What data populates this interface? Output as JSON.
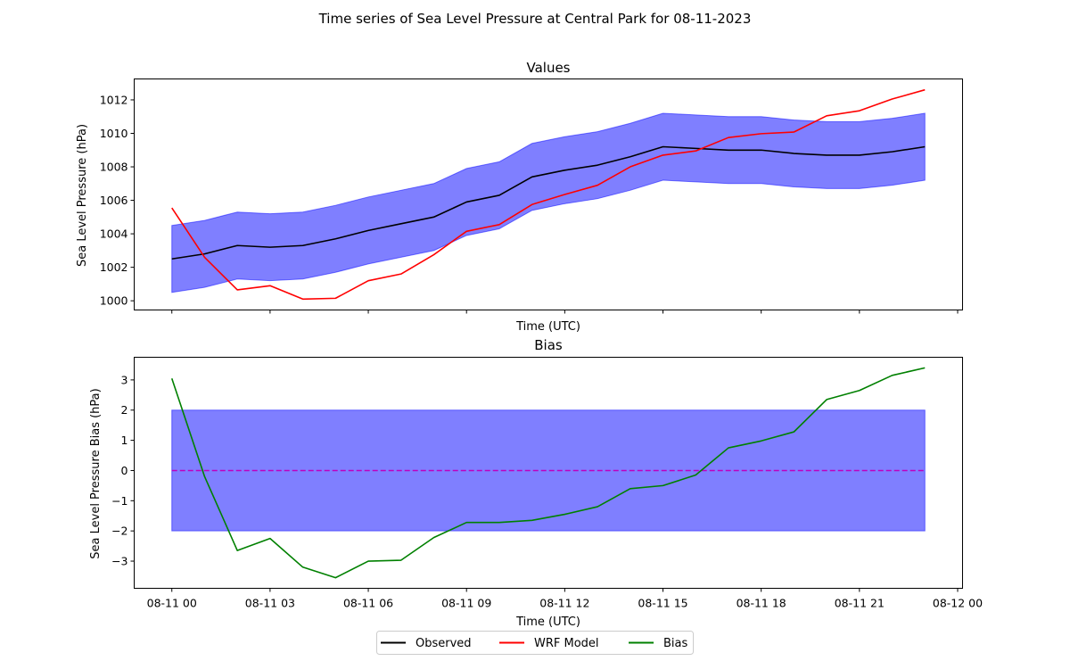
{
  "figure_title": "Time series of Sea Level Pressure at Central Park for 08-11-2023",
  "legend": {
    "entries": [
      {
        "label": "Observed",
        "color": "#000000"
      },
      {
        "label": "WRF Model",
        "color": "#ff0000"
      },
      {
        "label": "Bias",
        "color": "#008000"
      }
    ],
    "placement": "bottom-center"
  },
  "chart_data": [
    {
      "type": "line",
      "title": "Values",
      "xlabel": "Time (UTC)",
      "ylabel": "Sea Level Pressure (hPa)",
      "x_hours": [
        0,
        1,
        2,
        3,
        4,
        5,
        6,
        7,
        8,
        9,
        10,
        11,
        12,
        13,
        14,
        15,
        16,
        17,
        18,
        19,
        20,
        21,
        22,
        23
      ],
      "xlim_hours": [
        -1.15,
        24.15
      ],
      "ylim": [
        999.45,
        1013.25
      ],
      "yticks": [
        1000,
        1002,
        1004,
        1006,
        1008,
        1010,
        1012
      ],
      "xtick_hours": [
        0,
        3,
        6,
        9,
        12,
        15,
        18,
        21,
        24
      ],
      "xtick_labels_shown": false,
      "grid": false,
      "band": {
        "color": "#0000ff",
        "opacity": 0.5,
        "lower": [
          1000.5,
          1000.8,
          1001.3,
          1001.2,
          1001.3,
          1001.7,
          1002.2,
          1002.6,
          1003.0,
          1003.9,
          1004.3,
          1005.4,
          1005.8,
          1006.1,
          1006.6,
          1007.2,
          1007.1,
          1007.0,
          1007.0,
          1006.8,
          1006.7,
          1006.7,
          1006.9,
          1007.2
        ],
        "upper": [
          1004.5,
          1004.8,
          1005.3,
          1005.2,
          1005.3,
          1005.7,
          1006.2,
          1006.6,
          1007.0,
          1007.9,
          1008.3,
          1009.4,
          1009.8,
          1010.1,
          1010.6,
          1011.2,
          1011.1,
          1011.0,
          1011.0,
          1010.8,
          1010.7,
          1010.7,
          1010.9,
          1011.2
        ]
      },
      "series": [
        {
          "name": "Observed",
          "color": "#000000",
          "values": [
            1002.5,
            1002.8,
            1003.3,
            1003.2,
            1003.3,
            1003.7,
            1004.2,
            1004.6,
            1005.0,
            1005.9,
            1006.3,
            1007.4,
            1007.8,
            1008.1,
            1008.6,
            1009.2,
            1009.1,
            1009.0,
            1009.0,
            1008.8,
            1008.7,
            1008.7,
            1008.9,
            1009.2
          ]
        },
        {
          "name": "WRF Model",
          "color": "#ff0000",
          "values": [
            1005.55,
            1002.6,
            1000.65,
            1000.9,
            1000.1,
            1000.15,
            1001.2,
            1001.6,
            1002.75,
            1004.15,
            1004.55,
            1005.75,
            1006.35,
            1006.9,
            1008.0,
            1008.7,
            1008.95,
            1009.75,
            1009.98,
            1010.08,
            1011.05,
            1011.35,
            1012.05,
            1012.6
          ]
        }
      ]
    },
    {
      "type": "line",
      "title": "Bias",
      "xlabel": "Time (UTC)",
      "ylabel": "Sea Level Pressure Bias (hPa)",
      "x_hours": [
        0,
        1,
        2,
        3,
        4,
        5,
        6,
        7,
        8,
        9,
        10,
        11,
        12,
        13,
        14,
        15,
        16,
        17,
        18,
        19,
        20,
        21,
        22,
        23
      ],
      "xlim_hours": [
        -1.15,
        24.15
      ],
      "ylim": [
        -3.9,
        3.75
      ],
      "yticks": [
        -3,
        -2,
        -1,
        0,
        1,
        2,
        3
      ],
      "ytick_labels": [
        "−3",
        "−2",
        "−1",
        "0",
        "1",
        "2",
        "3"
      ],
      "xtick_hours": [
        0,
        3,
        6,
        9,
        12,
        15,
        18,
        21,
        24
      ],
      "xtick_labels": [
        "08-11 00",
        "08-11 03",
        "08-11 06",
        "08-11 09",
        "08-11 12",
        "08-11 15",
        "08-11 18",
        "08-11 21",
        "08-12 00"
      ],
      "grid": false,
      "band": {
        "color": "#0000ff",
        "opacity": 0.5,
        "lower_const": -2,
        "upper_const": 2,
        "x_hours": [
          0,
          23
        ]
      },
      "reference_line": {
        "y": 0,
        "color": "#bf00bf",
        "style": "dashed"
      },
      "series": [
        {
          "name": "Bias",
          "color": "#008000",
          "values": [
            3.05,
            -0.2,
            -2.65,
            -2.25,
            -3.2,
            -3.55,
            -3.0,
            -2.97,
            -2.22,
            -1.72,
            -1.72,
            -1.65,
            -1.45,
            -1.2,
            -0.6,
            -0.5,
            -0.15,
            0.75,
            0.98,
            1.28,
            2.35,
            2.65,
            3.15,
            3.4
          ]
        }
      ]
    }
  ]
}
